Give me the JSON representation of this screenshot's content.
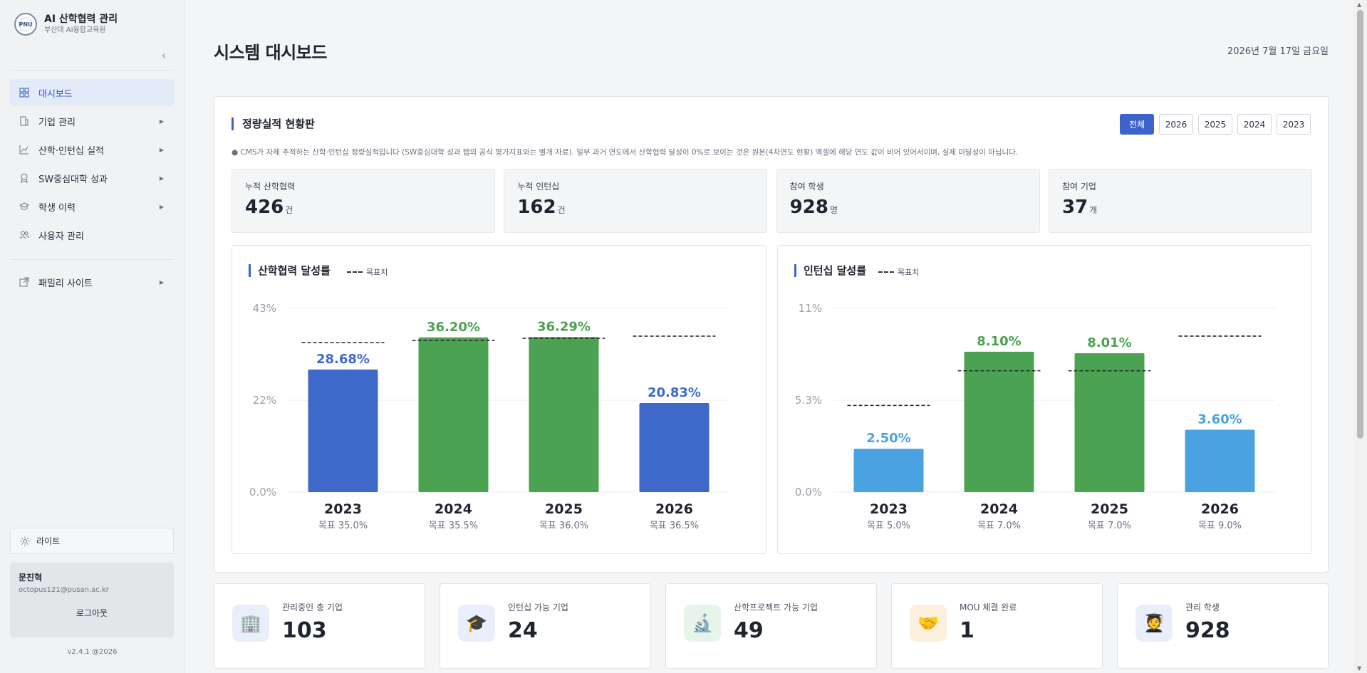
{
  "sidebar": {
    "title": "AI 산학협력 관리",
    "subtitle": "부산대 AI융합교육원",
    "logo_text": "PNU",
    "collapse_icon": "chevron-left-icon",
    "items": [
      {
        "label": "대시보드",
        "icon": "grid-icon"
      },
      {
        "label": "기업 관리",
        "icon": "building-icon"
      },
      {
        "label": "산학·인턴십 실적",
        "icon": "chart-line-icon"
      },
      {
        "label": "SW중심대학 성과",
        "icon": "award-icon"
      },
      {
        "label": "학생 이력",
        "icon": "graduation-cap-icon"
      },
      {
        "label": "사용자 관리",
        "icon": "users-icon"
      }
    ],
    "family_site": "패밀리 사이트",
    "theme_label": "라이트",
    "user_name": "문진혁",
    "user_email": "octopus121@pusan.ac.kr",
    "logout": "로그아웃",
    "version": "v2.4.1 @2026"
  },
  "header": {
    "title": "시스템 대시보드",
    "date": "2026년 7월 17일 금요일"
  },
  "panel": {
    "title": "정량실적 현황판",
    "year_tabs": [
      "전체",
      "2026",
      "2025",
      "2024",
      "2023"
    ],
    "active_tab": "전체",
    "note": "● CMS가 자체 추적하는 산학·인턴십 정량실적입니다 (SW중심대학 성과 탭의 공식 평가지표와는 별개 자료). 일부 과거 연도에서 산학협력 달성이 0%로 보이는 것은 원본(4차연도 현황) 엑셀에 해당 연도 값이 비어 있어서이며, 실제 미달성이 아닙니다.",
    "stats": [
      {
        "label": "누적 산학협력",
        "value": "426",
        "unit": "건"
      },
      {
        "label": "누적 인턴십",
        "value": "162",
        "unit": "건"
      },
      {
        "label": "참여 학생",
        "value": "928",
        "unit": "명"
      },
      {
        "label": "참여 기업",
        "value": "37",
        "unit": "개"
      }
    ]
  },
  "chart_data": [
    {
      "type": "bar",
      "title": "산학협력 달성률",
      "legend": "목표치",
      "categories": [
        "2023",
        "2024",
        "2025",
        "2026"
      ],
      "values": [
        28.68,
        36.2,
        36.29,
        20.83
      ],
      "value_labels": [
        "28.68%",
        "36.20%",
        "36.29%",
        "20.83%"
      ],
      "targets": [
        35.0,
        35.5,
        36.0,
        36.5
      ],
      "target_labels": [
        "목표 35.0%",
        "목표 35.5%",
        "목표 36.0%",
        "목표 36.5%"
      ],
      "yticks": [
        "0.0%",
        "22%",
        "43%"
      ],
      "ylim": [
        0,
        43
      ],
      "met": [
        false,
        true,
        true,
        false
      ],
      "colors": {
        "met": "#4ca253",
        "unmet": "#3e68c9"
      }
    },
    {
      "type": "bar",
      "title": "인턴십 달성률",
      "legend": "목표치",
      "categories": [
        "2023",
        "2024",
        "2025",
        "2026"
      ],
      "values": [
        2.5,
        8.1,
        8.01,
        3.6
      ],
      "value_labels": [
        "2.50%",
        "8.10%",
        "8.01%",
        "3.60%"
      ],
      "targets": [
        5.0,
        7.0,
        7.0,
        9.0
      ],
      "target_labels": [
        "목표 5.0%",
        "목표 7.0%",
        "목표 7.0%",
        "목표 9.0%"
      ],
      "yticks": [
        "0.0%",
        "5.3%",
        "11%"
      ],
      "ylim": [
        0,
        10.6
      ],
      "met": [
        false,
        true,
        true,
        false
      ],
      "colors": {
        "met": "#4ca253",
        "unmet": "#4aa3e0"
      }
    }
  ],
  "cards": [
    {
      "label": "관리중인 총 기업",
      "value": "103",
      "icon": "building-icon",
      "emoji": "🏢",
      "bg": "#e8eefa"
    },
    {
      "label": "인턴십 가능 기업",
      "value": "24",
      "icon": "graduation-cap-icon",
      "emoji": "🎓",
      "bg": "#e8eefa"
    },
    {
      "label": "산학프로젝트 가능 기업",
      "value": "49",
      "icon": "microscope-icon",
      "emoji": "🔬",
      "bg": "#e6f4ea"
    },
    {
      "label": "MOU 체결 완료",
      "value": "1",
      "icon": "handshake-icon",
      "emoji": "🤝",
      "bg": "#fbf0dc"
    },
    {
      "label": "관리 학생",
      "value": "928",
      "icon": "student-icon",
      "emoji": "🧑‍🎓",
      "bg": "#e8eefa"
    }
  ]
}
